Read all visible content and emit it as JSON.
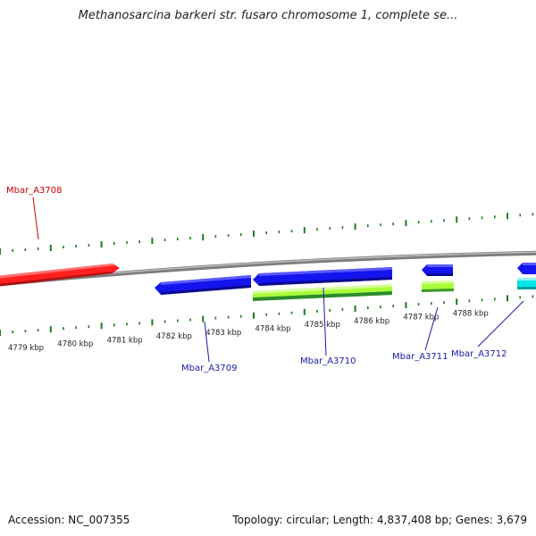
{
  "title": "Methanosarcina barkeri str. fusaro chromosome 1, complete se...",
  "footer": {
    "accession": "Accession: NC_007355",
    "summary": "Topology: circular; Length: 4,837,408 bp; Genes: 3,679"
  },
  "colors": {
    "tick": "#1f7a1f",
    "backbone": "#8a8a8a",
    "gene_red": "#ff2020",
    "gene_blue": "#1414ee",
    "gene_cyan": "#00e5e5",
    "gene_lime": "#a8ff3a",
    "label_red": "#cc0000",
    "label_blue": "#1a1aa8"
  },
  "scale": {
    "labels": [
      "4779 kbp",
      "4780 kbp",
      "4781 kbp",
      "4782 kbp",
      "4783 kbp",
      "4784 kbp",
      "4785 kbp",
      "4786 kbp",
      "4787 kbp",
      "4788 kbp"
    ]
  },
  "genes": [
    {
      "name": "Mbar_A3708",
      "strand": "forward",
      "color": "red"
    },
    {
      "name": "Mbar_A3709",
      "strand": "reverse",
      "color": "blue"
    },
    {
      "name": "Mbar_A3710",
      "strand": "reverse",
      "color": "blue"
    },
    {
      "name": "Mbar_A3711",
      "strand": "reverse",
      "color": "blue"
    },
    {
      "name": "Mbar_A3712",
      "strand": "reverse",
      "color": "blue"
    }
  ]
}
